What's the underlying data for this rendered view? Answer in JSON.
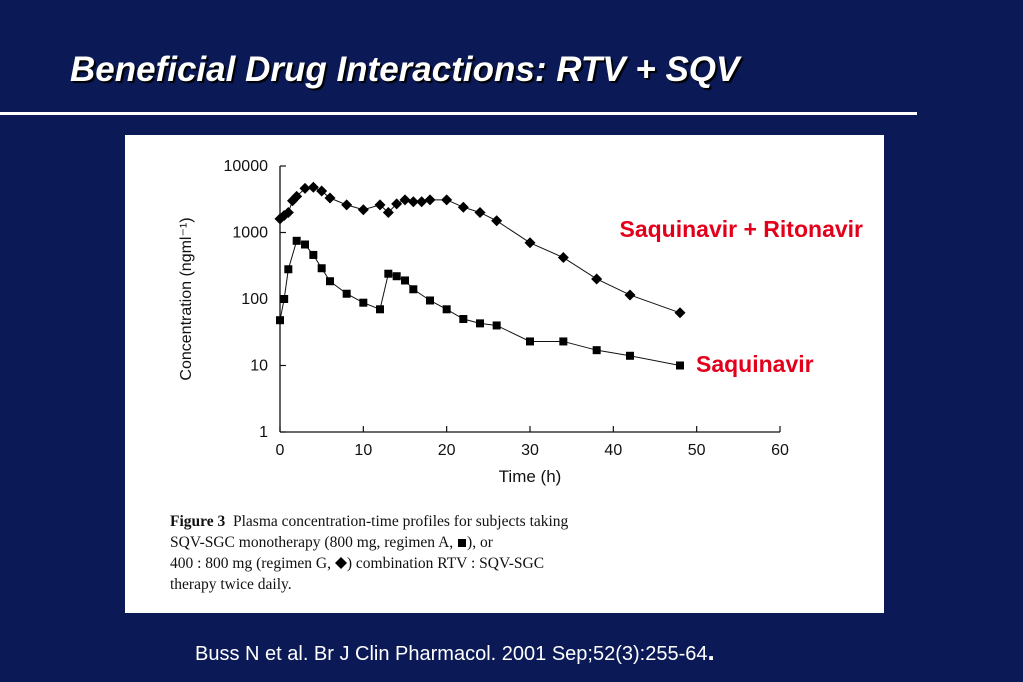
{
  "slide": {
    "title": "Beneficial Drug Interactions: RTV + SQV",
    "citation": "Buss N et al. Br J Clin Pharmacol. 2001 Sep;52(3):255-64",
    "citation_period": "."
  },
  "figure": {
    "caption_label": "Figure 3",
    "caption_line1": "Plasma concentration-time profiles for subjects taking",
    "caption_line2_a": "SQV-SGC monotherapy (800 mg, regimen A,",
    "caption_line2_b": "), or",
    "caption_line3_a": "400 : 800 mg (regimen G,",
    "caption_line3_b": ") combination RTV : SQV-SGC",
    "caption_line4": "therapy twice daily."
  },
  "chart_data": {
    "type": "line",
    "title": "",
    "xlabel": "Time (h)",
    "ylabel": "Concentration (ngml⁻¹)",
    "xlim": [
      0,
      60
    ],
    "ylim": [
      1,
      10000
    ],
    "yscale": "log",
    "xticks": [
      "0",
      "10",
      "20",
      "30",
      "40",
      "50",
      "60"
    ],
    "yticks": [
      "1",
      "10",
      "100",
      "1000",
      "10000"
    ],
    "grid": false,
    "colors": {
      "labels": "#e3001b",
      "marks": "#000000"
    },
    "series": [
      {
        "name": "Saquinavir + Ritonavir",
        "marker": "diamond",
        "x": [
          0,
          0.5,
          1,
          1.5,
          2,
          3,
          4,
          5,
          6,
          8,
          10,
          12,
          13,
          14,
          15,
          16,
          17,
          18,
          20,
          22,
          24,
          26,
          30,
          34,
          38,
          42,
          48
        ],
        "y": [
          1600,
          1800,
          2000,
          3000,
          3500,
          4600,
          4800,
          4200,
          3300,
          2600,
          2200,
          2600,
          2000,
          2700,
          3100,
          2900,
          2900,
          3100,
          3100,
          2400,
          2000,
          1500,
          700,
          420,
          200,
          115,
          62
        ]
      },
      {
        "name": "Saquinavir",
        "marker": "square",
        "x": [
          0,
          0.5,
          1,
          2,
          3,
          4,
          5,
          6,
          8,
          10,
          12,
          13,
          14,
          15,
          16,
          18,
          20,
          22,
          24,
          26,
          30,
          34,
          38,
          42,
          48
        ],
        "y": [
          48,
          100,
          280,
          750,
          660,
          460,
          290,
          185,
          120,
          88,
          70,
          240,
          220,
          190,
          140,
          95,
          70,
          50,
          43,
          40,
          23,
          23,
          17,
          14,
          10
        ]
      }
    ]
  }
}
